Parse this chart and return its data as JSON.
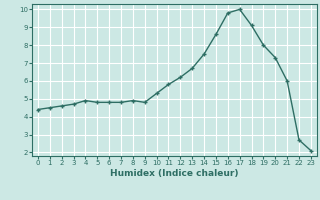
{
  "x": [
    0,
    1,
    2,
    3,
    4,
    5,
    6,
    7,
    8,
    9,
    10,
    11,
    12,
    13,
    14,
    15,
    16,
    17,
    18,
    19,
    20,
    21,
    22,
    23
  ],
  "y": [
    4.4,
    4.5,
    4.6,
    4.7,
    4.9,
    4.8,
    4.8,
    4.8,
    4.9,
    4.8,
    5.3,
    5.8,
    6.2,
    6.7,
    7.5,
    8.6,
    9.8,
    10.0,
    9.1,
    8.0,
    7.3,
    6.0,
    2.7,
    2.1
  ],
  "xlabel": "Humidex (Indice chaleur)",
  "bg_color": "#cce8e4",
  "line_color": "#2e6e64",
  "grid_color": "#ffffff",
  "ylim_min": 1.8,
  "ylim_max": 10.3,
  "xlim_min": -0.5,
  "xlim_max": 23.5,
  "yticks": [
    2,
    3,
    4,
    5,
    6,
    7,
    8,
    9,
    10
  ],
  "xticks": [
    0,
    1,
    2,
    3,
    4,
    5,
    6,
    7,
    8,
    9,
    10,
    11,
    12,
    13,
    14,
    15,
    16,
    17,
    18,
    19,
    20,
    21,
    22,
    23
  ],
  "tick_fontsize": 5,
  "xlabel_fontsize": 6.5,
  "xlabel_fontweight": "bold",
  "linewidth": 1.0,
  "markersize": 3.5,
  "markeredgewidth": 1.0
}
